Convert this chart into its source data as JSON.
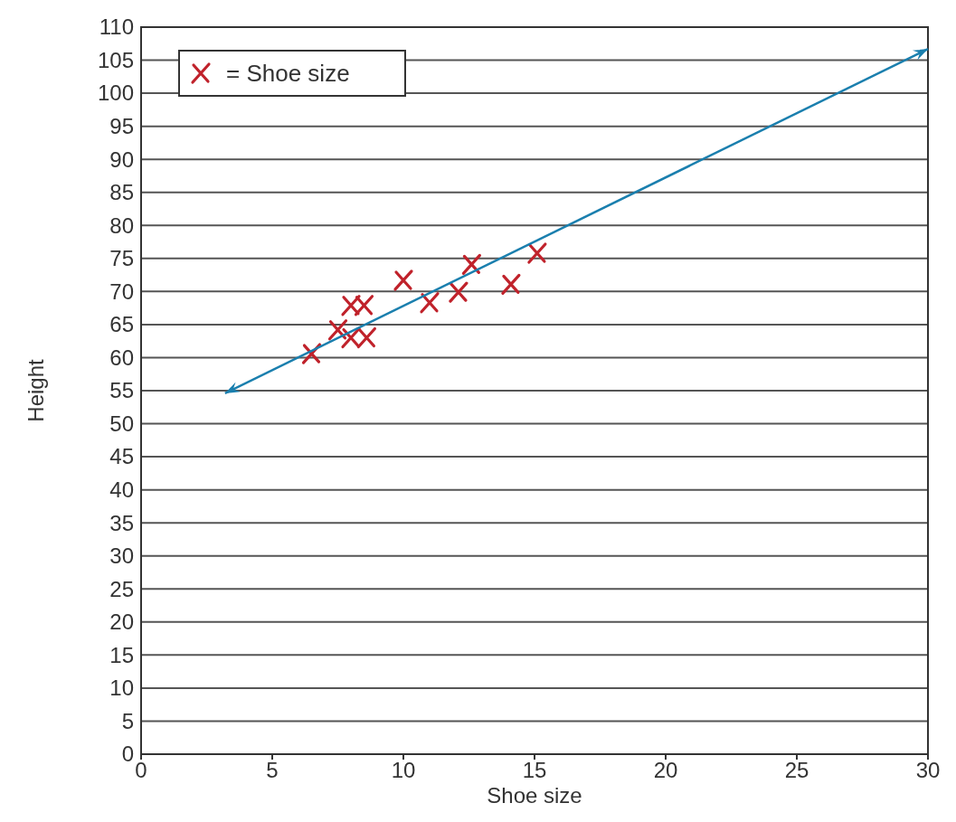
{
  "chart_data": {
    "type": "scatter",
    "xlabel": "Shoe size",
    "ylabel": "Height",
    "xlim": [
      0,
      30
    ],
    "xticks": [
      0,
      5,
      10,
      15,
      20,
      25,
      30
    ],
    "ylim": [
      0,
      110
    ],
    "yticks": [
      0,
      5,
      10,
      15,
      20,
      25,
      30,
      35,
      40,
      45,
      50,
      55,
      60,
      65,
      70,
      75,
      80,
      85,
      90,
      95,
      100,
      105,
      110
    ],
    "grid": "y",
    "legend": "top left",
    "marker": "cross",
    "series": [
      {
        "name": "= Shoe size",
        "color": "#c0222b",
        "x": [
          6.5,
          7.5,
          8,
          8.6,
          8,
          8.5,
          10,
          11,
          12.1,
          12.6,
          14.1,
          15.1
        ],
        "values": [
          60.6,
          64.2,
          63,
          63,
          67.9,
          67.9,
          71.7,
          68.3,
          69.9,
          74.1,
          71.1,
          75.8
        ]
      },
      {
        "type": "line",
        "marker": "none",
        "color": "#1a7fae",
        "x": [
          3.2,
          30
        ],
        "values": [
          54.6,
          106.7
        ]
      }
    ]
  }
}
